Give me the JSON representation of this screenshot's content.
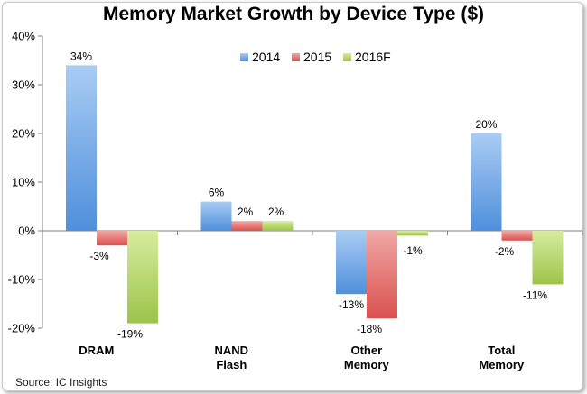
{
  "chart_data": {
    "type": "bar",
    "title": "Memory Market Growth by Device Type ($)",
    "categories": [
      "DRAM",
      "NAND Flash",
      "Other Memory",
      "Total Memory"
    ],
    "category_lines": [
      [
        "DRAM"
      ],
      [
        "NAND",
        "Flash"
      ],
      [
        "Other",
        "Memory"
      ],
      [
        "Total",
        "Memory"
      ]
    ],
    "series": [
      {
        "name": "2014",
        "values": [
          34,
          6,
          -13,
          20
        ],
        "labels": [
          "34%",
          "6%",
          "-13%",
          "20%"
        ],
        "color": "#4f8fdc",
        "light": "#a9ccf3"
      },
      {
        "name": "2015",
        "values": [
          -3,
          2,
          -18,
          -2
        ],
        "labels": [
          "-3%",
          "2%",
          "-18%",
          "-2%"
        ],
        "color": "#d9514e",
        "light": "#f0a8a6"
      },
      {
        "name": "2016F",
        "values": [
          -19,
          2,
          -1,
          -11
        ],
        "labels": [
          "-19%",
          "2%",
          "-1%",
          "-11%"
        ],
        "color": "#9cc44a",
        "light": "#d7ec9f"
      }
    ],
    "ylim": [
      -20,
      40
    ],
    "yticks": [
      -20,
      -10,
      0,
      10,
      20,
      30,
      40
    ],
    "ytick_labels": [
      "-20%",
      "-10%",
      "0%",
      "10%",
      "20%",
      "30%",
      "40%"
    ],
    "legend_position": "top-center",
    "grid": false,
    "xlabel": "",
    "ylabel": ""
  },
  "source_text": "Source:  IC Insights"
}
